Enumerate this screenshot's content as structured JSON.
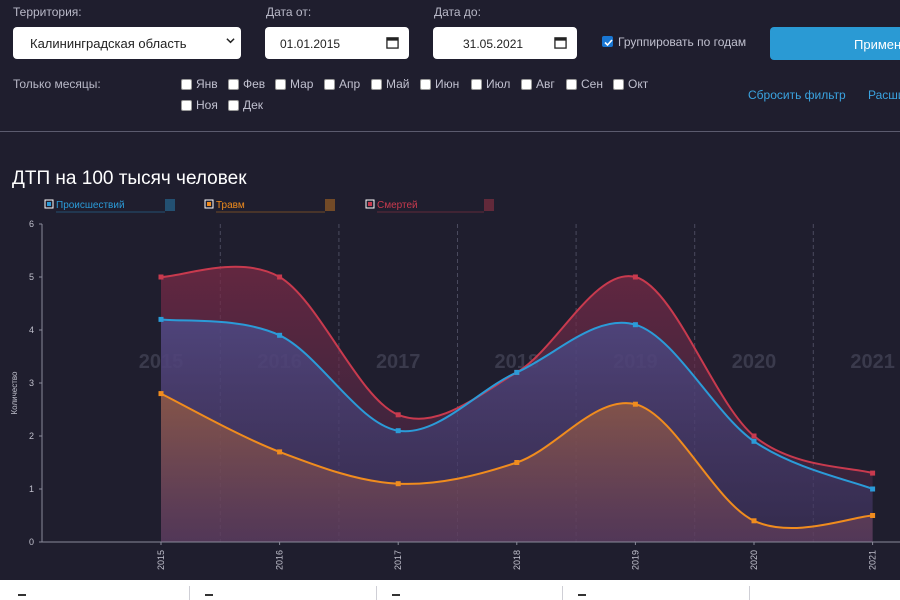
{
  "filters": {
    "territory_label": "Территория:",
    "territory_value": "Калининградская область",
    "date_from_label": "Дата от:",
    "date_from_value": "01.01.2015",
    "date_to_label": "Дата до:",
    "date_to_value": "31.05.2021",
    "group_by_years_label": "Группировать по годам",
    "group_by_years_checked": true,
    "apply_label": "Примени",
    "months_label": "Только месяцы:",
    "months": [
      "Янв",
      "Фев",
      "Мар",
      "Апр",
      "Май",
      "Июн",
      "Июл",
      "Авг",
      "Сен",
      "Окт",
      "Ноя",
      "Дек"
    ],
    "reset_label": "Сбросить фильтр",
    "extended_label": "Расши"
  },
  "chart": {
    "title": "ДТП на 100 тысяч человек"
  },
  "chart_data": {
    "type": "area",
    "title": "ДТП на 100 тысяч человек",
    "xlabel": "",
    "ylabel": "Количество",
    "categories": [
      "2015",
      "2016",
      "2017",
      "2018",
      "2019",
      "2020",
      "2021"
    ],
    "watermark_labels": [
      "2015",
      "2016",
      "2017",
      "2018",
      "2019",
      "2020",
      "2021"
    ],
    "ylim": [
      0,
      6
    ],
    "yticks": [
      0,
      1,
      2,
      3,
      4,
      5,
      6
    ],
    "legend_position": "top-left",
    "series": [
      {
        "name": "Происшествий",
        "color": "#2b9bd8",
        "values": [
          4.2,
          3.9,
          2.1,
          3.2,
          4.1,
          1.9,
          1.0
        ]
      },
      {
        "name": "Травм",
        "color": "#f08c1e",
        "values": [
          2.8,
          1.7,
          1.1,
          1.5,
          2.6,
          0.4,
          0.5
        ]
      },
      {
        "name": "Смертей",
        "color": "#c83a4e",
        "values": [
          5.0,
          5.0,
          2.4,
          3.2,
          5.0,
          2.0,
          1.3
        ]
      }
    ]
  }
}
